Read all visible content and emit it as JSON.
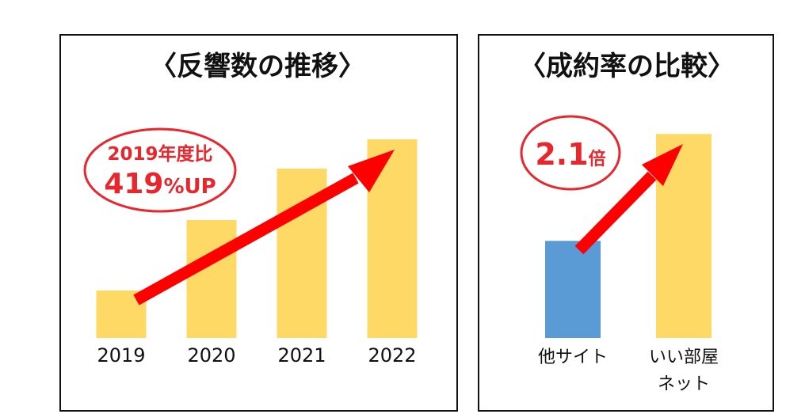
{
  "chart_data": [
    {
      "type": "bar",
      "title": "〈反響数の推移〉",
      "categories": [
        "2019",
        "2020",
        "2021",
        "2022"
      ],
      "values": [
        60,
        149,
        214,
        251
      ],
      "ylim": [
        0,
        260
      ],
      "bar_color": "#FFD966",
      "annotation": {
        "line1": "2019年度比",
        "line2_number": "419",
        "line2_unit": "%UP"
      },
      "arrow_color": "#FF0000",
      "annotation_color": "#E8262C"
    },
    {
      "type": "bar",
      "title": "〈成約率の比較〉",
      "categories": [
        "他サイト",
        "いい部屋ネット"
      ],
      "category_lines": [
        [
          "他サイト"
        ],
        [
          "いい部屋",
          "ネット"
        ]
      ],
      "values": [
        1.0,
        2.1
      ],
      "ylim": [
        0,
        2.2
      ],
      "bar_colors": [
        "#5B9BD5",
        "#FFD966"
      ],
      "annotation": {
        "number": "2.1",
        "unit": "倍"
      },
      "arrow_color": "#FF0000",
      "annotation_color": "#E8262C"
    }
  ]
}
